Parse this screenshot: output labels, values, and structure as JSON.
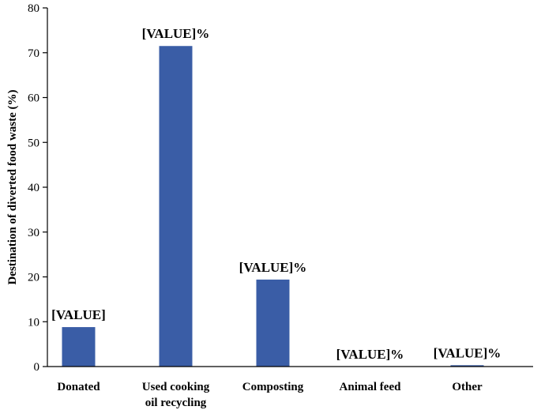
{
  "chart_data": {
    "type": "bar",
    "title": "",
    "xlabel": "",
    "ylabel": "Destination of diverted food waste  (%)",
    "ylim": [
      0,
      80
    ],
    "yticks": [
      0,
      10,
      20,
      30,
      40,
      50,
      60,
      70,
      80
    ],
    "grid": false,
    "bar_color": "#3a5da6",
    "categories": [
      [
        "Donated"
      ],
      [
        "Used cooking",
        "oil recycling"
      ],
      [
        "Composting"
      ],
      [
        "Animal feed"
      ],
      [
        "Other"
      ]
    ],
    "values": [
      8.8,
      71.5,
      19.4,
      0,
      0.3
    ],
    "data_labels": [
      "[VALUE]",
      "[VALUE]%",
      "[VALUE]%",
      "[VALUE]%",
      "[VALUE]%"
    ]
  }
}
